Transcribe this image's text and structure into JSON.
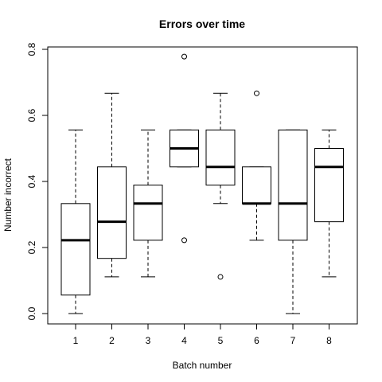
{
  "chart_data": {
    "type": "boxplot",
    "title": "Errors over time",
    "xlabel": "Batch number",
    "ylabel": "Number incorrect",
    "categories": [
      "1",
      "2",
      "3",
      "4",
      "5",
      "6",
      "7",
      "8"
    ],
    "ylim": [
      -0.03,
      0.82
    ],
    "yticks": [
      0.0,
      0.2,
      0.4,
      0.6,
      0.8
    ],
    "ytick_labels": [
      "0.0",
      "0.2",
      "0.4",
      "0.6",
      "0.8"
    ],
    "grid": false,
    "legend": "none",
    "boxes": [
      {
        "category": "1",
        "whisker_low": 0.0,
        "q1": 0.056,
        "median": 0.222,
        "q3": 0.333,
        "whisker_high": 0.556,
        "outliers": []
      },
      {
        "category": "2",
        "whisker_low": 0.111,
        "q1": 0.167,
        "median": 0.278,
        "q3": 0.444,
        "whisker_high": 0.667,
        "outliers": []
      },
      {
        "category": "3",
        "whisker_low": 0.111,
        "q1": 0.222,
        "median": 0.333,
        "q3": 0.389,
        "whisker_high": 0.556,
        "outliers": []
      },
      {
        "category": "4",
        "whisker_low": 0.444,
        "q1": 0.444,
        "median": 0.5,
        "q3": 0.556,
        "whisker_high": 0.556,
        "outliers": [
          0.778,
          0.222
        ]
      },
      {
        "category": "5",
        "whisker_low": 0.333,
        "q1": 0.389,
        "median": 0.444,
        "q3": 0.556,
        "whisker_high": 0.667,
        "outliers": [
          0.111
        ]
      },
      {
        "category": "6",
        "whisker_low": 0.222,
        "q1": 0.333,
        "median": 0.333,
        "q3": 0.444,
        "whisker_high": 0.444,
        "outliers": [
          0.667
        ]
      },
      {
        "category": "7",
        "whisker_low": 0.0,
        "q1": 0.222,
        "median": 0.333,
        "q3": 0.556,
        "whisker_high": 0.556,
        "outliers": []
      },
      {
        "category": "8",
        "whisker_low": 0.111,
        "q1": 0.278,
        "median": 0.444,
        "q3": 0.5,
        "whisker_high": 0.556,
        "outliers": []
      }
    ]
  }
}
